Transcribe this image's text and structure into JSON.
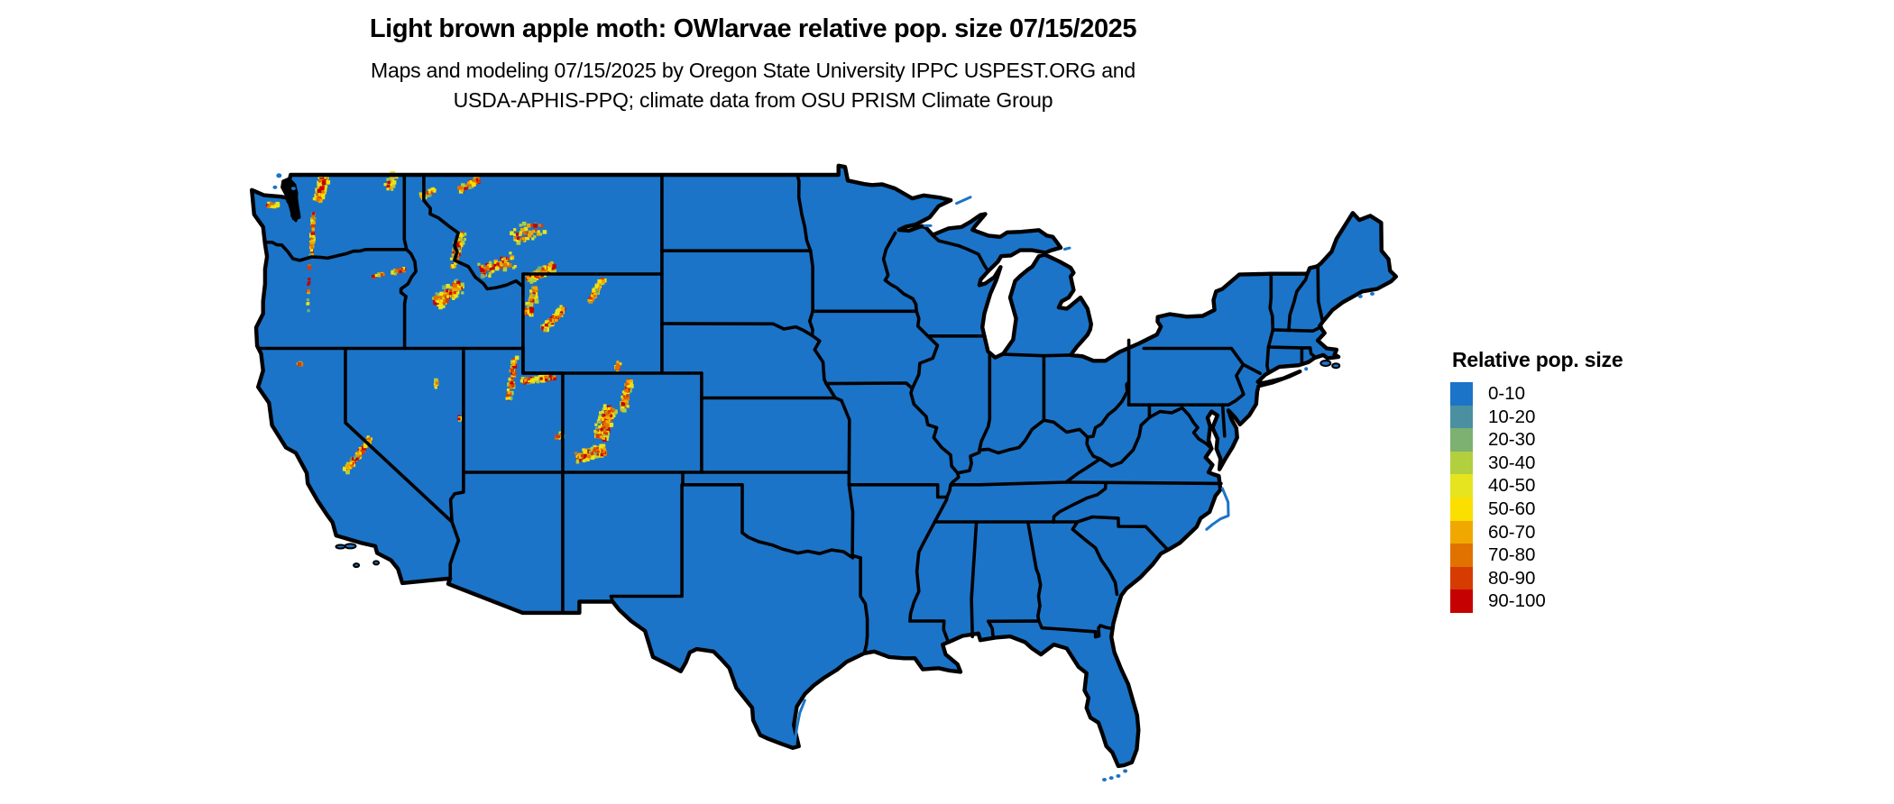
{
  "header": {
    "title": "Light brown apple moth: OWlarvae relative pop. size 07/15/2025",
    "subtitle_line1": "Maps and modeling 07/15/2025 by Oregon State University IPPC USPEST.ORG and",
    "subtitle_line2": "USDA-APHIS-PPQ; climate data from OSU PRISM Climate Group"
  },
  "legend": {
    "title": "Relative pop. size",
    "classes": [
      {
        "range": "0-10",
        "color": "#1B74C8"
      },
      {
        "range": "10-20",
        "color": "#4A90A0"
      },
      {
        "range": "20-30",
        "color": "#7DB171"
      },
      {
        "range": "30-40",
        "color": "#B2CF3E"
      },
      {
        "range": "40-50",
        "color": "#E6E41F"
      },
      {
        "range": "50-60",
        "color": "#FADF00"
      },
      {
        "range": "60-70",
        "color": "#F0A800"
      },
      {
        "range": "70-80",
        "color": "#E07200"
      },
      {
        "range": "80-90",
        "color": "#D63C02"
      },
      {
        "range": "90-100",
        "color": "#C60102"
      }
    ]
  },
  "map": {
    "region": "conterminous United States",
    "base_class_range": "0-10",
    "base_color": "#1B74C8",
    "border_color": "#000000",
    "water_color": "#FFFFFF",
    "hotspots": [
      {
        "name": "north-cascades-wa",
        "lon": -121.2,
        "lat": 48.45,
        "axis_lon": 0.25,
        "axis_lat": -1,
        "length_deg": 1.3,
        "width_deg": 0.5,
        "count": 210
      },
      {
        "name": "wa-cascades-south",
        "lon": -121.65,
        "lat": 46.6,
        "axis_lon": 0.05,
        "axis_lat": -1,
        "length_deg": 2.2,
        "width_deg": 0.16,
        "count": 55
      },
      {
        "name": "olympics-wa",
        "lon": -123.65,
        "lat": 47.75,
        "axis_lon": 1,
        "axis_lat": -0.2,
        "length_deg": 0.55,
        "width_deg": 0.3,
        "count": 26
      },
      {
        "name": "selkirks-ne-wa",
        "lon": -117.7,
        "lat": 48.75,
        "axis_lon": 0.4,
        "axis_lat": -1,
        "length_deg": 0.9,
        "width_deg": 0.5,
        "count": 40
      },
      {
        "name": "glacier-mt",
        "lon": -113.75,
        "lat": 48.6,
        "axis_lon": 1,
        "axis_lat": -0.55,
        "length_deg": 1.1,
        "width_deg": 0.45,
        "count": 55
      },
      {
        "name": "cabinet-id-mt",
        "lon": -115.85,
        "lat": 48.25,
        "axis_lon": 1,
        "axis_lat": -0.4,
        "length_deg": 0.8,
        "width_deg": 0.35,
        "count": 28
      },
      {
        "name": "bitterroot-id-mt",
        "lon": -114.35,
        "lat": 46.0,
        "axis_lon": 0.25,
        "axis_lat": -1,
        "length_deg": 1.9,
        "width_deg": 0.5,
        "count": 80
      },
      {
        "name": "sawtooth-central-id",
        "lon": -114.8,
        "lat": 44.2,
        "axis_lon": 1,
        "axis_lat": -0.8,
        "length_deg": 1.7,
        "width_deg": 0.9,
        "count": 120
      },
      {
        "name": "sw-montana",
        "lon": -112.4,
        "lat": 45.35,
        "axis_lon": 1,
        "axis_lat": -0.35,
        "length_deg": 1.8,
        "width_deg": 0.9,
        "count": 70
      },
      {
        "name": "central-montana",
        "lon": -110.8,
        "lat": 46.7,
        "axis_lon": 1,
        "axis_lat": -0.4,
        "length_deg": 1.6,
        "width_deg": 1.0,
        "count": 45
      },
      {
        "name": "absaroka-beartooth",
        "lon": -110.15,
        "lat": 45.05,
        "axis_lon": 1,
        "axis_lat": -0.5,
        "length_deg": 1.5,
        "width_deg": 0.55,
        "count": 130
      },
      {
        "name": "yellowstone-teton",
        "lon": -110.6,
        "lat": 43.9,
        "axis_lon": 0.3,
        "axis_lat": -1,
        "length_deg": 1.4,
        "width_deg": 0.5,
        "count": 90
      },
      {
        "name": "wind-river-wy",
        "lon": -109.5,
        "lat": 43.2,
        "axis_lon": 1,
        "axis_lat": -1.1,
        "length_deg": 1.5,
        "width_deg": 0.38,
        "count": 110
      },
      {
        "name": "bighorn-wy",
        "lon": -107.35,
        "lat": 44.35,
        "axis_lon": 0.55,
        "axis_lat": -1,
        "length_deg": 1.3,
        "width_deg": 0.3,
        "count": 85
      },
      {
        "name": "medicine-bow-wy",
        "lon": -106.3,
        "lat": 41.25,
        "axis_lon": 0.3,
        "axis_lat": -1,
        "length_deg": 0.5,
        "width_deg": 0.3,
        "count": 14
      },
      {
        "name": "uinta-ut",
        "lon": -110.3,
        "lat": 40.75,
        "axis_lon": 1,
        "axis_lat": -0.12,
        "length_deg": 1.7,
        "width_deg": 0.35,
        "count": 105
      },
      {
        "name": "wasatch-ut",
        "lon": -111.6,
        "lat": 40.8,
        "axis_lon": 0.15,
        "axis_lat": -1,
        "length_deg": 2.2,
        "width_deg": 0.28,
        "count": 70
      },
      {
        "name": "la-sal-ut",
        "lon": -109.25,
        "lat": 38.45,
        "axis_lon": 1,
        "axis_lat": -0.4,
        "length_deg": 0.4,
        "width_deg": 0.25,
        "count": 10
      },
      {
        "name": "colorado-front-range",
        "lon": -105.85,
        "lat": 40.1,
        "axis_lon": 0.18,
        "axis_lat": -1,
        "length_deg": 1.6,
        "width_deg": 0.42,
        "count": 95
      },
      {
        "name": "colorado-central-rockies",
        "lon": -106.9,
        "lat": 39.0,
        "axis_lon": 0.3,
        "axis_lat": -1,
        "length_deg": 1.7,
        "width_deg": 0.85,
        "count": 150
      },
      {
        "name": "san-juan-co",
        "lon": -107.65,
        "lat": 37.75,
        "axis_lon": 1,
        "axis_lat": -0.25,
        "length_deg": 1.5,
        "width_deg": 0.7,
        "count": 130
      },
      {
        "name": "sierra-nevada-ca",
        "lon": -119.35,
        "lat": 37.7,
        "axis_lon": 1,
        "axis_lat": -1.35,
        "length_deg": 2.1,
        "width_deg": 0.32,
        "count": 150
      },
      {
        "name": "mt-shasta-ca",
        "lon": -122.3,
        "lat": 41.38,
        "axis_lon": 1,
        "axis_lat": 0,
        "length_deg": 0.2,
        "width_deg": 0.15,
        "count": 7
      },
      {
        "name": "wallowa-or",
        "lon": -117.35,
        "lat": 45.1,
        "axis_lon": 1,
        "axis_lat": -0.35,
        "length_deg": 0.7,
        "width_deg": 0.35,
        "count": 26
      },
      {
        "name": "blue-mtns-or",
        "lon": -118.35,
        "lat": 44.95,
        "axis_lon": 1,
        "axis_lat": -0.3,
        "length_deg": 0.6,
        "width_deg": 0.3,
        "count": 12
      },
      {
        "name": "oregon-cascades",
        "lon": -121.85,
        "lat": 44.5,
        "axis_lon": 0.05,
        "axis_lat": -1,
        "length_deg": 2.6,
        "width_deg": 0.12,
        "count": 16
      },
      {
        "name": "ruby-mtns-nv",
        "lon": -115.45,
        "lat": 40.55,
        "axis_lon": 0.4,
        "axis_lat": -1,
        "length_deg": 0.5,
        "width_deg": 0.2,
        "count": 8
      },
      {
        "name": "snake-range-nv",
        "lon": -114.25,
        "lat": 39.1,
        "axis_lon": 0.2,
        "axis_lat": -1,
        "length_deg": 0.4,
        "width_deg": 0.2,
        "count": 6
      }
    ]
  }
}
